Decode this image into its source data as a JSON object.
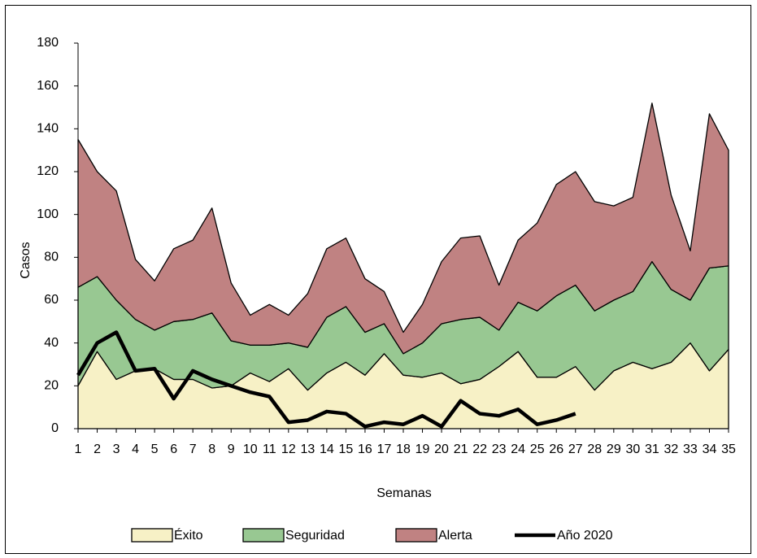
{
  "chart_data": {
    "type": "stacked-area",
    "x_label": "Semanas",
    "y_label": "Casos",
    "x": [
      1,
      2,
      3,
      4,
      5,
      6,
      7,
      8,
      9,
      10,
      11,
      12,
      13,
      14,
      15,
      16,
      17,
      18,
      19,
      20,
      21,
      22,
      23,
      24,
      25,
      26,
      27,
      28,
      29,
      30,
      31,
      32,
      33,
      34,
      35
    ],
    "xlim": [
      1,
      35
    ],
    "ylim": [
      0,
      180
    ],
    "yticks": [
      0,
      20,
      40,
      60,
      80,
      100,
      120,
      140,
      160,
      180
    ],
    "series": [
      {
        "name": "Éxito",
        "color": "#f7f1c6",
        "stacked": true,
        "values": [
          20,
          36,
          23,
          27,
          28,
          23,
          23,
          19,
          20,
          26,
          22,
          28,
          18,
          26,
          31,
          25,
          35,
          25,
          24,
          26,
          21,
          23,
          29,
          36,
          24,
          24,
          29,
          18,
          27,
          31,
          28,
          31,
          40,
          27,
          37
        ]
      },
      {
        "name": "Seguridad",
        "color": "#98c892",
        "stacked": true,
        "values": [
          46,
          35,
          37,
          24,
          18,
          27,
          28,
          35,
          21,
          13,
          17,
          12,
          20,
          26,
          26,
          20,
          14,
          10,
          16,
          23,
          30,
          29,
          17,
          23,
          31,
          38,
          38,
          37,
          33,
          33,
          50,
          34,
          20,
          48,
          39
        ]
      },
      {
        "name": "Alerta",
        "color": "#c08282",
        "stacked": true,
        "values": [
          69,
          49,
          51,
          28,
          23,
          34,
          37,
          49,
          27,
          14,
          19,
          13,
          25,
          32,
          32,
          25,
          15,
          10,
          18,
          29,
          38,
          38,
          21,
          29,
          41,
          52,
          53,
          51,
          44,
          44,
          74,
          44,
          23,
          72,
          54
        ]
      },
      {
        "name": "Año 2020",
        "color": "#000000",
        "stacked": false,
        "values": [
          25,
          40,
          45,
          27,
          28,
          14,
          27,
          23,
          20,
          17,
          15,
          3,
          4,
          8,
          7,
          1,
          3,
          2,
          6,
          1,
          13,
          7,
          6,
          9,
          2,
          4,
          7,
          null,
          null,
          null,
          null,
          null,
          null,
          null,
          null
        ]
      }
    ]
  }
}
